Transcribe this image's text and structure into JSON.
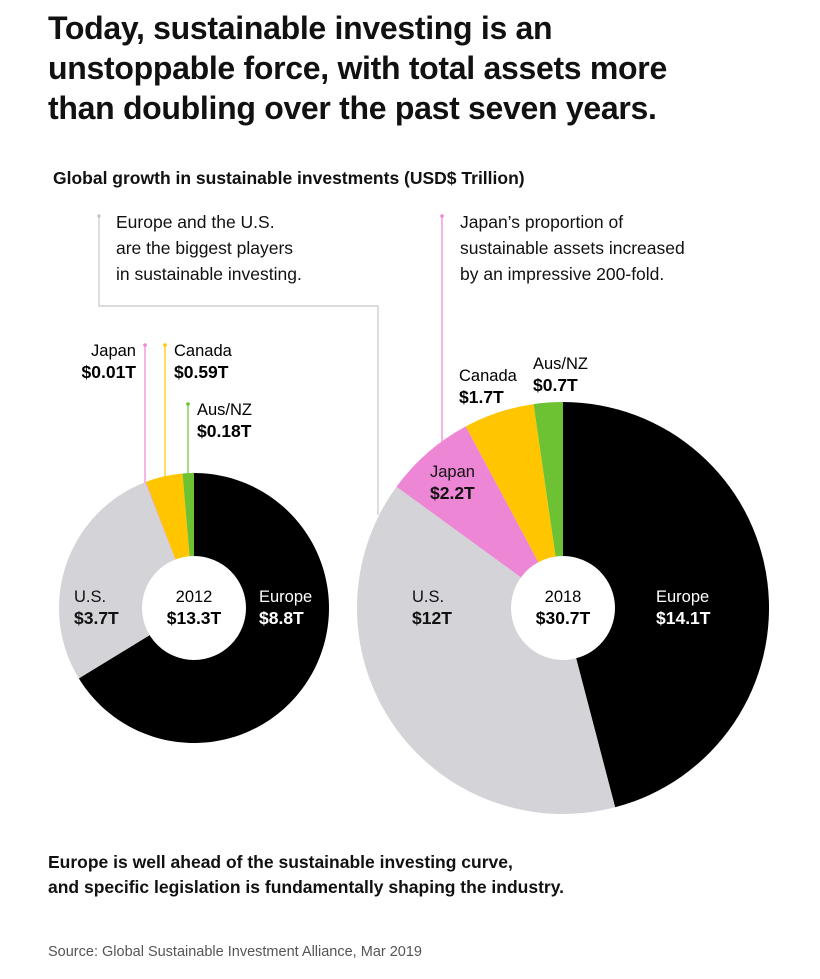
{
  "headline": {
    "line1": "Today, sustainable investing is an",
    "line2": "unstoppable force, with total assets more",
    "line3": "than doubling over the past seven years."
  },
  "subtitle": "Global growth in sustainable investments (USD$ Trillion)",
  "notes": {
    "left": "Europe and the U.S.\nare the biggest players\nin sustainable investing.",
    "right": "Japan’s proportion of\nsustainable assets increased\nby an impressive 200-fold."
  },
  "colors": {
    "europe": "#000000",
    "us": "#d3d3d8",
    "japan": "#ee86d6",
    "canada": "#ffc600",
    "ausnz": "#6cc232",
    "leader": "#c8c8c8"
  },
  "chart_data": [
    {
      "type": "pie",
      "title": "2012",
      "total_label": "$13.3T",
      "total": 13.3,
      "slices": [
        {
          "key": "europe",
          "name": "Europe",
          "value": 8.8,
          "label": "$8.8T"
        },
        {
          "key": "us",
          "name": "U.S.",
          "value": 3.7,
          "label": "$3.7T"
        },
        {
          "key": "japan",
          "name": "Japan",
          "value": 0.01,
          "label": "$0.01T"
        },
        {
          "key": "canada",
          "name": "Canada",
          "value": 0.59,
          "label": "$0.59T"
        },
        {
          "key": "ausnz",
          "name": "Aus/NZ",
          "value": 0.18,
          "label": "$0.18T"
        }
      ]
    },
    {
      "type": "pie",
      "title": "2018",
      "total_label": "$30.7T",
      "total": 30.7,
      "slices": [
        {
          "key": "europe",
          "name": "Europe",
          "value": 14.1,
          "label": "$14.1T"
        },
        {
          "key": "us",
          "name": "U.S.",
          "value": 12,
          "label": "$12T"
        },
        {
          "key": "japan",
          "name": "Japan",
          "value": 2.2,
          "label": "$2.2T"
        },
        {
          "key": "canada",
          "name": "Canada",
          "value": 1.7,
          "label": "$1.7T"
        },
        {
          "key": "ausnz",
          "name": "Aus/NZ",
          "value": 0.7,
          "label": "$0.7T"
        }
      ]
    }
  ],
  "footer": {
    "line1": "Europe is well ahead of the sustainable investing curve,",
    "line2": "and specific legislation is fundamentally shaping the industry."
  },
  "source": "Source: Global Sustainable Investment Alliance, Mar 2019"
}
